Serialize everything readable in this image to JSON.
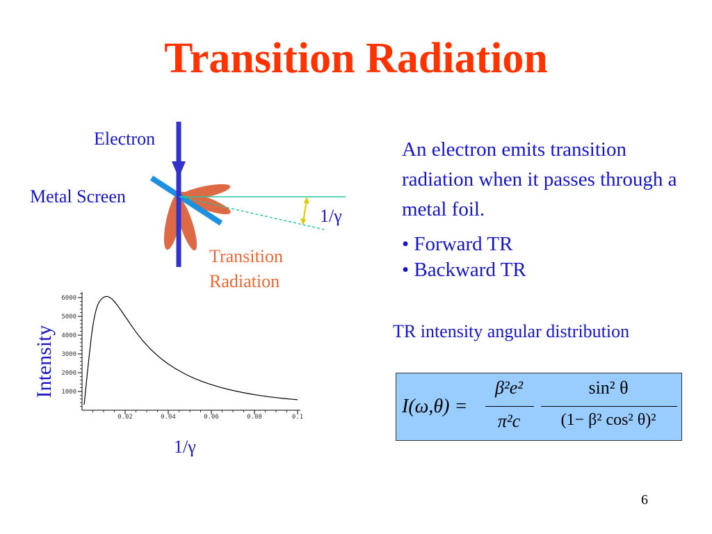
{
  "title": "Transition Radiation",
  "diagram": {
    "electron_label": "Electron",
    "screen_label": "Metal Screen",
    "gamma_label": "1/γ",
    "tr_label_line1": "Transition",
    "tr_label_line2": "Radiation",
    "colors": {
      "electron": "#3333cc",
      "screen": "#1e90e0",
      "lobes": "#dd6a44",
      "label": "#1515c8",
      "tr_label": "#ee6633"
    }
  },
  "intro_text": "An electron emits transition radiation when it  passes through a metal foil.",
  "bullets": [
    "• Forward TR",
    "• Backward TR"
  ],
  "distribution_label": "TR intensity angular distribution",
  "formula": {
    "lhs": "I(ω,θ) =",
    "frac1_num": "β²e²",
    "frac1_den": "π²c",
    "frac2_num": "sin² θ",
    "frac2_den": "(1− β² cos² θ)²"
  },
  "slide_number": "6",
  "chart_data": {
    "type": "line",
    "title": "",
    "xlabel": "1/γ",
    "ylabel": "Intensity",
    "xlim": [
      0,
      0.1
    ],
    "ylim": [
      0,
      6000
    ],
    "x_ticks": [
      0.02,
      0.04,
      0.06,
      0.08,
      0.1
    ],
    "x_tick_labels": [
      "0.02",
      "0.04",
      "0.06",
      "0.08",
      "0.1"
    ],
    "y_ticks": [
      1000,
      2000,
      3000,
      4000,
      5000,
      6000
    ],
    "y_tick_labels": [
      "1000",
      "2000",
      "3000",
      "4000",
      "5000",
      "6000"
    ],
    "series": [
      {
        "x": [
          0.001,
          0.003,
          0.005,
          0.007,
          0.009,
          0.011,
          0.013,
          0.015,
          0.017,
          0.02,
          0.025,
          0.03,
          0.035,
          0.04,
          0.045,
          0.05,
          0.055,
          0.06,
          0.065,
          0.07,
          0.075,
          0.08,
          0.085,
          0.09,
          0.095,
          0.1
        ],
        "y": [
          300,
          2600,
          4600,
          5600,
          5950,
          6080,
          6020,
          5800,
          5500,
          5000,
          4150,
          3450,
          2900,
          2450,
          2100,
          1800,
          1560,
          1360,
          1190,
          1050,
          930,
          830,
          740,
          670,
          610,
          560
        ]
      }
    ]
  }
}
